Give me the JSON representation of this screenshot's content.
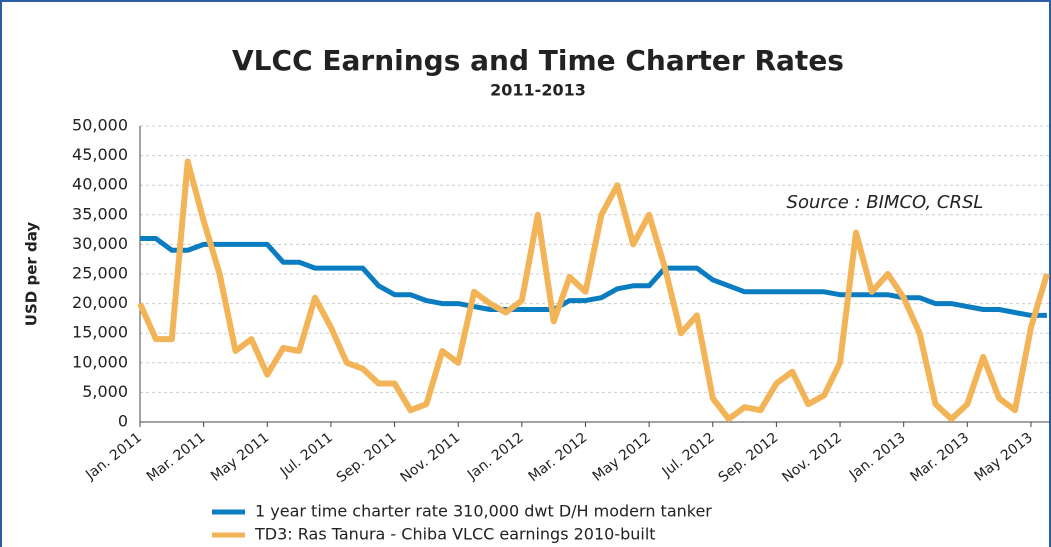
{
  "chart_data": {
    "type": "line",
    "title": "VLCC Earnings and Time Charter Rates",
    "subtitle": "2011-2013",
    "y_label": "USD per day",
    "annotation": "Source : BIMCO, CRSL",
    "categories": [
      "Jan. 2011",
      null,
      null,
      null,
      "Mar. 2011",
      null,
      null,
      null,
      "May 2011",
      null,
      null,
      null,
      "Jul. 2011",
      null,
      null,
      null,
      "Sep. 2011",
      null,
      null,
      null,
      "Nov. 2011",
      null,
      null,
      null,
      "Jan. 2012",
      null,
      null,
      null,
      "Mar. 2012",
      null,
      null,
      null,
      "May 2012",
      null,
      null,
      null,
      "Jul. 2012",
      null,
      null,
      null,
      "Sep. 2012",
      null,
      null,
      null,
      "Nov. 2012",
      null,
      null,
      null,
      "Jan. 2013",
      null,
      null,
      null,
      "Mar. 2013",
      null,
      null,
      null,
      "May 2013",
      null
    ],
    "series": [
      {
        "name": "1 year time charter rate 310,000 dwt D/H modern tanker",
        "color": "#0a7cc1",
        "values": [
          31000,
          31000,
          29000,
          29000,
          30000,
          30000,
          30000,
          30000,
          30000,
          27000,
          27000,
          26000,
          26000,
          26000,
          26000,
          23000,
          21500,
          21500,
          20500,
          20000,
          20000,
          19500,
          19000,
          19000,
          19000,
          19000,
          19000,
          20500,
          20500,
          21000,
          22500,
          23000,
          23000,
          26000,
          26000,
          26000,
          24000,
          23000,
          22000,
          22000,
          22000,
          22000,
          22000,
          22000,
          21500,
          21500,
          21500,
          21500,
          21000,
          21000,
          20000,
          20000,
          19500,
          19000,
          19000,
          18500,
          18000,
          18000
        ]
      },
      {
        "name": "TD3: Ras Tanura - Chiba VLCC earnings 2010-built",
        "color": "#f2b457",
        "values": [
          20000,
          14000,
          14000,
          44000,
          34000,
          25000,
          12000,
          14000,
          8000,
          12500,
          12000,
          21000,
          16000,
          10000,
          9000,
          6500,
          6500,
          2000,
          3000,
          12000,
          10000,
          22000,
          20000,
          18500,
          20500,
          35000,
          17000,
          24500,
          22000,
          35000,
          40000,
          30000,
          35000,
          26000,
          15000,
          18000,
          4000,
          500,
          2500,
          2000,
          6500,
          8500,
          3000,
          4500,
          10000,
          32000,
          22000,
          25000,
          21000,
          15000,
          3000,
          500,
          3000,
          11000,
          4000,
          2000,
          16000,
          25000
        ]
      }
    ],
    "ylim": [
      0,
      50000
    ],
    "yticks": [
      0,
      {
        "value": 5000,
        "label": "5,000"
      },
      {
        "value": 10000,
        "label": "10,000"
      },
      {
        "value": 15000,
        "label": "15,000"
      },
      {
        "value": 20000,
        "label": "20,000"
      },
      {
        "value": 25000,
        "label": "25,000"
      },
      {
        "value": 30000,
        "label": "30,000"
      },
      {
        "value": 35000,
        "label": "35,000"
      },
      {
        "value": 40000,
        "label": "40,000"
      },
      {
        "value": 45000,
        "label": "45,000"
      },
      {
        "value": 50000,
        "label": "50,000"
      }
    ],
    "grid": true
  }
}
